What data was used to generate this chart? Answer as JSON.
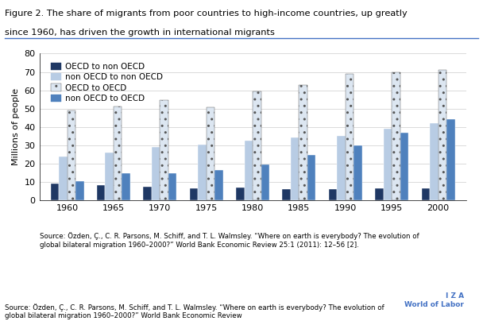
{
  "title_line1": "Figure 2. The share of migrants from poor countries to high-income countries, up greatly",
  "title_line2": "since 1960, has driven the growth in international migrants",
  "years": [
    1960,
    1965,
    1970,
    1975,
    1980,
    1985,
    1990,
    1995,
    2000
  ],
  "series": {
    "OECD to non OECD": [
      9,
      8,
      7.5,
      6.5,
      7,
      6,
      6,
      6.5,
      6.5
    ],
    "non OECD to non OECD": [
      24,
      26,
      29,
      30.5,
      32.5,
      34,
      35,
      39,
      42
    ],
    "OECD to OECD": [
      49,
      51,
      54.5,
      50.5,
      59.5,
      63,
      69,
      70,
      71
    ],
    "non OECD to OECD": [
      10.5,
      14.5,
      14.5,
      16.5,
      19.5,
      24.5,
      30,
      37,
      44
    ]
  },
  "colors": {
    "OECD to non OECD": "#1f3864",
    "non OECD to non OECD": "#b8cce4",
    "OECD to OECD": "#dce6f1",
    "non OECD to OECD": "#4f81bd"
  },
  "hatch": {
    "OECD to non OECD": "",
    "non OECD to non OECD": "",
    "OECD to OECD": "..",
    "non OECD to OECD": ""
  },
  "ylabel": "Millions of people",
  "ylim": [
    0,
    80
  ],
  "yticks": [
    0,
    10,
    20,
    30,
    40,
    50,
    60,
    70,
    80
  ],
  "source_text": "Source: Özden, Ç., C. R. Parsons, M. Schiff, and T. L. Walmsley. “Where on earth is everybody? The evolution of\nglobal bilateral migration 1960–2000?” World Bank Economic Review 25:1 (2011): 12–56 [2].",
  "iza_text": "I Z A\nWorld of Labor",
  "bar_width": 0.18,
  "background_color": "#ffffff",
  "border_color": "#4472c4"
}
